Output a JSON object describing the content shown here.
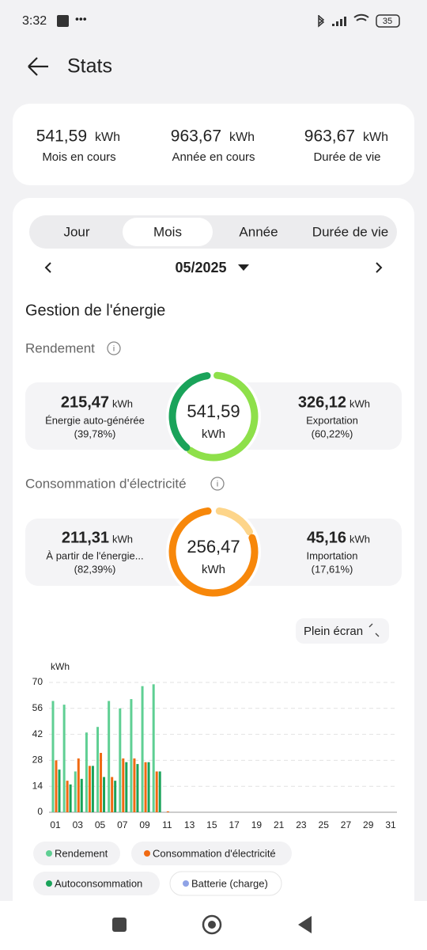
{
  "status_bar": {
    "time": "3:32",
    "battery": "35"
  },
  "header": {
    "title": "Stats"
  },
  "summary": [
    {
      "value": "541,59",
      "unit": "kWh",
      "label": "Mois en cours"
    },
    {
      "value": "963,67",
      "unit": "kWh",
      "label": "Année en cours"
    },
    {
      "value": "963,67",
      "unit": "kWh",
      "label": "Durée de vie"
    }
  ],
  "tabs": {
    "items": [
      "Jour",
      "Mois",
      "Année",
      "Durée de vie"
    ],
    "selected": 1
  },
  "period": "05/2025",
  "section_title": "Gestion de l'énergie",
  "yield": {
    "title": "Rendement",
    "left": {
      "value": "215,47",
      "unit": "kWh",
      "label": "Énergie auto-générée",
      "share": "(39,78%)"
    },
    "center": {
      "value": "541,59",
      "unit": "kWh"
    },
    "right": {
      "value": "326,12",
      "unit": "kWh",
      "label": "Exportation",
      "share": "(60,22%)"
    }
  },
  "consumption": {
    "title": "Consommation d'électricité",
    "left": {
      "value": "211,31",
      "unit": "kWh",
      "label": "À partir de l'énergie...",
      "share": "(82,39%)"
    },
    "center": {
      "value": "256,47",
      "unit": "kWh"
    },
    "right": {
      "value": "45,16",
      "unit": "kWh",
      "label": "Importation",
      "share": "(17,61%)"
    }
  },
  "fullscreen": "Plein écran",
  "chart_data": {
    "type": "bar",
    "y_label": "kWh",
    "categories": [
      "01",
      null,
      "03",
      null,
      "05",
      null,
      "07",
      null,
      "09",
      null,
      "11",
      null,
      "13",
      null,
      "15",
      null,
      "17",
      null,
      "19",
      null,
      "21",
      null,
      "23",
      null,
      "25",
      null,
      "27",
      null,
      "29",
      null,
      "31"
    ],
    "series": [
      {
        "name": "Rendement",
        "color": "#5fcf93",
        "values": [
          60,
          58,
          22,
          43,
          46,
          60,
          56,
          61,
          68,
          69,
          0,
          null,
          null,
          null,
          null,
          null,
          null,
          null,
          null,
          null,
          null,
          null,
          null,
          null,
          null,
          null,
          null,
          null,
          null,
          null,
          null
        ]
      },
      {
        "name": "Consommation d'électricité",
        "color": "#f06a12",
        "values": [
          28,
          17,
          29,
          25,
          32,
          19,
          29,
          29,
          27,
          22,
          0.5,
          null,
          null,
          null,
          null,
          null,
          null,
          null,
          null,
          null,
          null,
          null,
          null,
          null,
          null,
          null,
          null,
          null,
          null,
          null,
          null
        ]
      },
      {
        "name": "Autoconsommation",
        "color": "#1aa35a",
        "values": [
          23,
          15,
          18,
          25,
          19,
          17,
          27,
          26,
          27,
          22,
          0,
          null,
          null,
          null,
          null,
          null,
          null,
          null,
          null,
          null,
          null,
          null,
          null,
          null,
          null,
          null,
          null,
          null,
          null,
          null,
          null
        ]
      },
      {
        "name": "Batterie (charge)",
        "color": "#8fa3e6",
        "values": [
          null,
          null,
          null,
          null,
          null,
          null,
          null,
          null,
          null,
          null,
          null,
          null,
          null,
          null,
          null,
          null,
          null,
          null,
          null,
          null,
          null,
          null,
          null,
          null,
          null,
          null,
          null,
          null,
          null,
          null,
          null
        ]
      }
    ],
    "ylim": [
      0,
      70
    ],
    "yticks": [
      0,
      14,
      28,
      42,
      56,
      70
    ],
    "grid": true
  }
}
